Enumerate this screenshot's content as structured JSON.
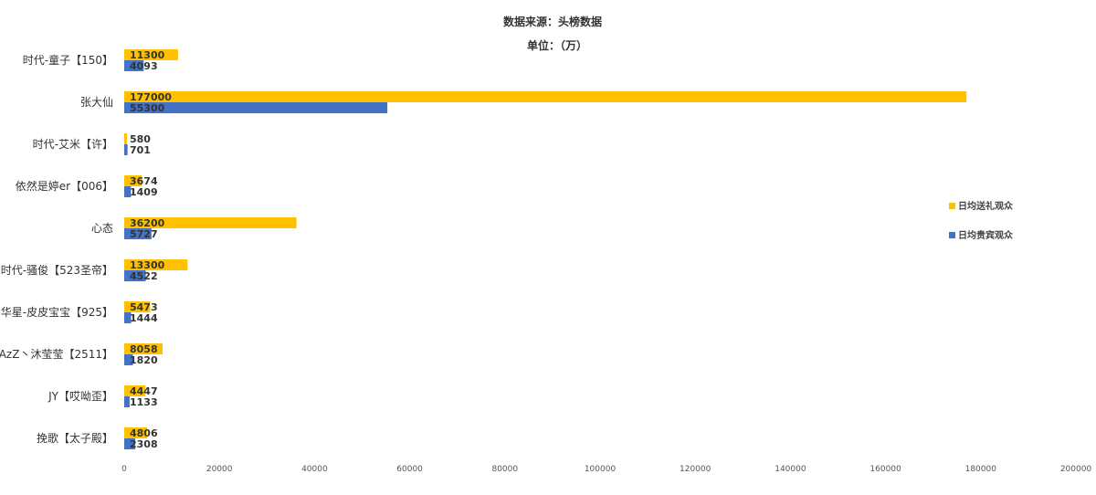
{
  "chart_data": {
    "type": "bar",
    "orientation": "horizontal",
    "title": "数据来源：头榜数据",
    "subtitle": "单位：（万）",
    "xlabel": "",
    "ylabel": "",
    "xlim": [
      0,
      200000
    ],
    "x_ticks": [
      0,
      20000,
      40000,
      60000,
      80000,
      100000,
      120000,
      140000,
      160000,
      180000,
      200000
    ],
    "x_tick_labels": [
      "0",
      "20000",
      "40000",
      "60000",
      "80000",
      "100000",
      "120000",
      "140000",
      "160000",
      "180000",
      "200000"
    ],
    "grid": false,
    "legend_position": "right",
    "categories": [
      "时代-童子【150】",
      "张大仙",
      "时代-艾米【许】",
      "依然是婷er【006】",
      "心态",
      "时代-骚俊【523圣帝】",
      "华星-皮皮宝宝【925】",
      "AzZ丶沐莹莹【2511】",
      "JY【哎呦歪】",
      "挽歌【太子殿】"
    ],
    "series": [
      {
        "name": "日均送礼观众",
        "color": "#FFC000",
        "values": [
          11300,
          177000,
          580,
          3674,
          36200,
          13300,
          5473,
          8058,
          4447,
          4806
        ],
        "labels": [
          "11300",
          "177000",
          "580",
          "3674",
          "36200",
          "13300",
          "5473",
          "8058",
          "4447",
          "4806"
        ]
      },
      {
        "name": "日均贵宾观众",
        "color": "#4472C4",
        "values": [
          4093,
          55300,
          701,
          1409,
          5727,
          4522,
          1444,
          1820,
          1133,
          2308
        ],
        "labels": [
          "4093",
          "55300",
          "701",
          "1409",
          "5727",
          "4522",
          "1444",
          "1820",
          "1133",
          "2308"
        ]
      }
    ]
  }
}
